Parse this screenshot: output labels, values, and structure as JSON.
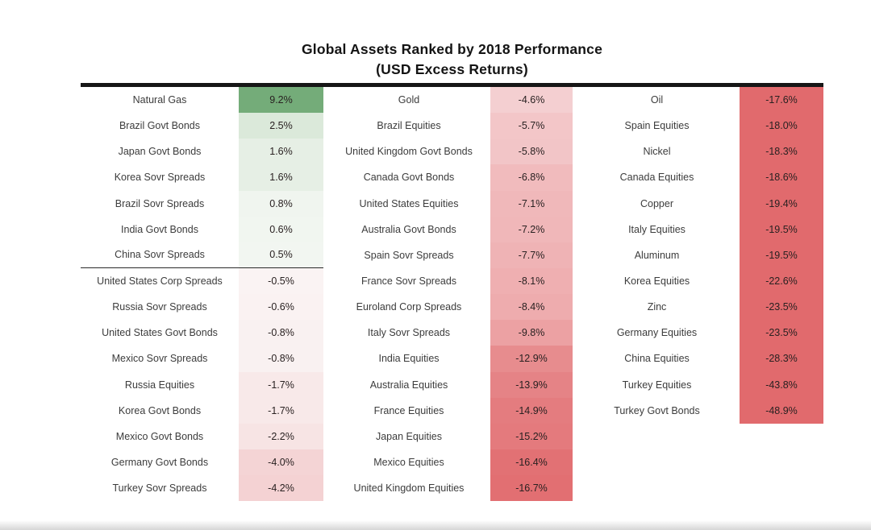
{
  "title": {
    "line1": "Global Assets Ranked by 2018 Performance",
    "line2": "(USD Excess Returns)"
  },
  "colors": {
    "top_rule": "#161616",
    "divider_rule": "#2a2a2a",
    "positive_max_green": "#74ac79",
    "negative_cap_red": "#e16a6d",
    "label_text": "#3c3c3c",
    "value_text": "#292121"
  },
  "chart_data": {
    "type": "table",
    "title": "Global Assets Ranked by 2018 Performance (USD Excess Returns)",
    "value_unit": "percent",
    "color_encoding": "diverging green (positive) to red (negative), saturating near -17.5%",
    "legend": "none",
    "columns": [
      {
        "divider_after_index": 6,
        "rows": [
          {
            "label": "Natural Gas",
            "value": 9.2,
            "display": "9.2%",
            "color": "#74ac79"
          },
          {
            "label": "Brazil Govt Bonds",
            "value": 2.5,
            "display": "2.5%",
            "color": "#dbe9da"
          },
          {
            "label": "Japan Govt Bonds",
            "value": 1.6,
            "display": "1.6%",
            "color": "#e6efe5"
          },
          {
            "label": "Korea Sovr Spreads",
            "value": 1.6,
            "display": "1.6%",
            "color": "#e6efe5"
          },
          {
            "label": "Brazil Sovr Spreads",
            "value": 0.8,
            "display": "0.8%",
            "color": "#f0f5ef"
          },
          {
            "label": "India Govt Bonds",
            "value": 0.6,
            "display": "0.6%",
            "color": "#f1f6f0"
          },
          {
            "label": "China Sovr Spreads",
            "value": 0.5,
            "display": "0.5%",
            "color": "#f2f6f1"
          },
          {
            "label": "United States Corp Spreads",
            "value": -0.5,
            "display": "-0.5%",
            "color": "#faf3f3"
          },
          {
            "label": "Russia Sovr Spreads",
            "value": -0.6,
            "display": "-0.6%",
            "color": "#faf2f2"
          },
          {
            "label": "United States Govt Bonds",
            "value": -0.8,
            "display": "-0.8%",
            "color": "#f9f1f1"
          },
          {
            "label": "Mexico Sovr Spreads",
            "value": -0.8,
            "display": "-0.8%",
            "color": "#f9f1f1"
          },
          {
            "label": "Russia Equities",
            "value": -1.7,
            "display": "-1.7%",
            "color": "#f8e9e9"
          },
          {
            "label": "Korea Govt Bonds",
            "value": -1.7,
            "display": "-1.7%",
            "color": "#f8e9e9"
          },
          {
            "label": "Mexico Govt Bonds",
            "value": -2.2,
            "display": "-2.2%",
            "color": "#f7e4e4"
          },
          {
            "label": "Germany Govt Bonds",
            "value": -4.0,
            "display": "-4.0%",
            "color": "#f4d4d5"
          },
          {
            "label": "Turkey Sovr Spreads",
            "value": -4.2,
            "display": "-4.2%",
            "color": "#f4d2d3"
          }
        ]
      },
      {
        "divider_after_index": null,
        "rows": [
          {
            "label": "Gold",
            "value": -4.6,
            "display": "-4.6%",
            "color": "#f4cfd1"
          },
          {
            "label": "Brazil Equities",
            "value": -5.7,
            "display": "-5.7%",
            "color": "#f3c6c8"
          },
          {
            "label": "United Kingdom Govt Bonds",
            "value": -5.8,
            "display": "-5.8%",
            "color": "#f2c5c7"
          },
          {
            "label": "Canada Govt Bonds",
            "value": -6.8,
            "display": "-6.8%",
            "color": "#f1bbbd"
          },
          {
            "label": "United States Equities",
            "value": -7.1,
            "display": "-7.1%",
            "color": "#f0b8ba"
          },
          {
            "label": "Australia Govt Bonds",
            "value": -7.2,
            "display": "-7.2%",
            "color": "#f0b7b9"
          },
          {
            "label": "Spain Sovr Spreads",
            "value": -7.7,
            "display": "-7.7%",
            "color": "#efb3b5"
          },
          {
            "label": "France Sovr Spreads",
            "value": -8.1,
            "display": "-8.1%",
            "color": "#efafb1"
          },
          {
            "label": "Euroland Corp Spreads",
            "value": -8.4,
            "display": "-8.4%",
            "color": "#eeacae"
          },
          {
            "label": "Italy Sovr Spreads",
            "value": -9.8,
            "display": "-9.8%",
            "color": "#eca1a3"
          },
          {
            "label": "India Equities",
            "value": -12.9,
            "display": "-12.9%",
            "color": "#e78c8e"
          },
          {
            "label": "Australia Equities",
            "value": -13.9,
            "display": "-13.9%",
            "color": "#e58386"
          },
          {
            "label": "France Equities",
            "value": -14.9,
            "display": "-14.9%",
            "color": "#e47c7f"
          },
          {
            "label": "Japan Equities",
            "value": -15.2,
            "display": "-15.2%",
            "color": "#e47a7d"
          },
          {
            "label": "Mexico Equities",
            "value": -16.4,
            "display": "-16.4%",
            "color": "#e27174"
          },
          {
            "label": "United Kingdom Equities",
            "value": -16.7,
            "display": "-16.7%",
            "color": "#e26f72"
          }
        ]
      },
      {
        "divider_after_index": null,
        "rows": [
          {
            "label": "Oil",
            "value": -17.6,
            "display": "-17.6%",
            "color": "#e16a6d"
          },
          {
            "label": "Spain Equities",
            "value": -18.0,
            "display": "-18.0%",
            "color": "#e16a6d"
          },
          {
            "label": "Nickel",
            "value": -18.3,
            "display": "-18.3%",
            "color": "#e16a6d"
          },
          {
            "label": "Canada Equities",
            "value": -18.6,
            "display": "-18.6%",
            "color": "#e16a6d"
          },
          {
            "label": "Copper",
            "value": -19.4,
            "display": "-19.4%",
            "color": "#e16a6d"
          },
          {
            "label": "Italy Equities",
            "value": -19.5,
            "display": "-19.5%",
            "color": "#e16a6d"
          },
          {
            "label": "Aluminum",
            "value": -19.5,
            "display": "-19.5%",
            "color": "#e16a6d"
          },
          {
            "label": "Korea Equities",
            "value": -22.6,
            "display": "-22.6%",
            "color": "#e16a6d"
          },
          {
            "label": "Zinc",
            "value": -23.5,
            "display": "-23.5%",
            "color": "#e16a6d"
          },
          {
            "label": "Germany Equities",
            "value": -23.5,
            "display": "-23.5%",
            "color": "#e16a6d"
          },
          {
            "label": "China Equities",
            "value": -28.3,
            "display": "-28.3%",
            "color": "#e16a6d"
          },
          {
            "label": "Turkey Equities",
            "value": -43.8,
            "display": "-43.8%",
            "color": "#e16a6d"
          },
          {
            "label": "Turkey Govt Bonds",
            "value": -48.9,
            "display": "-48.9%",
            "color": "#e16a6d"
          }
        ]
      }
    ]
  }
}
